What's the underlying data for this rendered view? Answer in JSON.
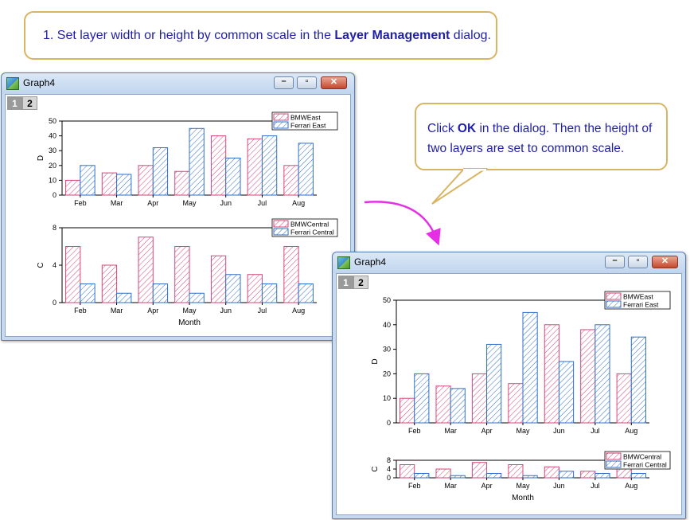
{
  "callout_top": {
    "pre": "1. Set layer width or height by common scale in the ",
    "bold": "Layer Management",
    "post": " dialog."
  },
  "callout_right": {
    "pre": "Click ",
    "bold": "OK",
    "post": " in the dialog. Then the height of two layers are set to common scale."
  },
  "colors": {
    "series_a": "#d6457a",
    "series_b": "#2e6fcc",
    "callout_border": "#d9b461",
    "arrow": "#e62ee6",
    "callout_text": "#1f1fa8"
  },
  "window": {
    "title": "Graph4",
    "tabs": [
      "1",
      "2"
    ],
    "controls": [
      "minimize-icon",
      "maximize-icon",
      "close-icon"
    ]
  },
  "chart_data": [
    {
      "type": "bar",
      "categories": [
        "Feb",
        "Mar",
        "Apr",
        "May",
        "Jun",
        "Jul",
        "Aug"
      ],
      "ylabel": "D",
      "ylim": [
        0,
        50
      ],
      "yticks": [
        0,
        10,
        20,
        30,
        40,
        50
      ],
      "legend": "top-right",
      "series": [
        {
          "name": "BMWEast",
          "values": [
            10,
            15,
            20,
            16,
            40,
            38,
            20
          ]
        },
        {
          "name": "Ferrari East",
          "values": [
            20,
            14,
            32,
            45,
            25,
            40,
            35
          ]
        }
      ]
    },
    {
      "type": "bar",
      "categories": [
        "Feb",
        "Mar",
        "Apr",
        "May",
        "Jun",
        "Jul",
        "Aug"
      ],
      "xlabel": "Month",
      "ylabel": "C",
      "ylim": [
        0,
        8
      ],
      "yticks": [
        0,
        4,
        8
      ],
      "legend": "top-right",
      "series": [
        {
          "name": "BMWCentral",
          "values": [
            6,
            4,
            7,
            6,
            5,
            3,
            6
          ]
        },
        {
          "name": "Ferrari Central",
          "values": [
            2,
            1,
            2,
            1,
            3,
            2,
            2
          ]
        }
      ]
    }
  ]
}
